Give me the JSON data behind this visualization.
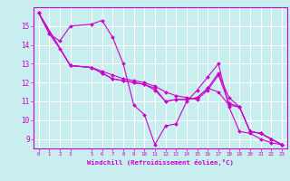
{
  "xlabel": "Windchill (Refroidissement éolien,°C)",
  "background_color": "#c8eef0",
  "grid_color": "#ffffff",
  "line_color": "#cc00cc",
  "xlim": [
    -0.5,
    23.5
  ],
  "ylim": [
    8.5,
    16.0
  ],
  "xticks": [
    0,
    1,
    2,
    3,
    5,
    6,
    7,
    8,
    9,
    10,
    11,
    12,
    13,
    14,
    15,
    16,
    17,
    18,
    19,
    20,
    21,
    22,
    23
  ],
  "yticks": [
    9,
    10,
    11,
    12,
    13,
    14,
    15
  ],
  "lines": [
    {
      "x": [
        0,
        1,
        2,
        3,
        5,
        6,
        7,
        8,
        9,
        10,
        11,
        12,
        13,
        14,
        15,
        16,
        17,
        18,
        19,
        20,
        21,
        22,
        23
      ],
      "y": [
        15.7,
        14.6,
        14.2,
        15.0,
        15.1,
        15.3,
        14.4,
        13.0,
        10.8,
        10.3,
        8.7,
        9.7,
        9.8,
        11.0,
        11.6,
        12.3,
        13.0,
        10.7,
        9.4,
        9.3,
        9.0,
        8.8,
        8.7
      ]
    },
    {
      "x": [
        0,
        1,
        2,
        3,
        5,
        6,
        7,
        8,
        9,
        10,
        11,
        12,
        13,
        14,
        15,
        16,
        17,
        18,
        19,
        20,
        21,
        22,
        23
      ],
      "y": [
        15.7,
        14.6,
        13.8,
        12.9,
        12.8,
        12.6,
        12.4,
        12.2,
        12.1,
        12.0,
        11.8,
        11.5,
        11.3,
        11.2,
        11.1,
        11.6,
        12.4,
        10.9,
        10.7,
        9.4,
        9.3,
        9.0,
        8.7
      ]
    },
    {
      "x": [
        0,
        3,
        5,
        6,
        7,
        8,
        9,
        10,
        11,
        12,
        13,
        14,
        15,
        16,
        17,
        18,
        19,
        20,
        21,
        22,
        23
      ],
      "y": [
        15.7,
        12.9,
        12.8,
        12.5,
        12.2,
        12.1,
        12.0,
        11.9,
        11.7,
        11.0,
        11.1,
        11.1,
        11.2,
        11.7,
        12.5,
        11.2,
        10.7,
        9.4,
        9.3,
        9.0,
        8.7
      ]
    },
    {
      "x": [
        0,
        3,
        5,
        6,
        7,
        8,
        9,
        10,
        11,
        12,
        13,
        14,
        15,
        16,
        17,
        18,
        19,
        20,
        21,
        22,
        23
      ],
      "y": [
        15.7,
        12.9,
        12.8,
        12.5,
        12.2,
        12.1,
        12.0,
        11.9,
        11.6,
        11.0,
        11.1,
        11.1,
        11.2,
        11.7,
        11.5,
        10.8,
        10.7,
        9.4,
        9.3,
        9.0,
        8.7
      ]
    }
  ]
}
